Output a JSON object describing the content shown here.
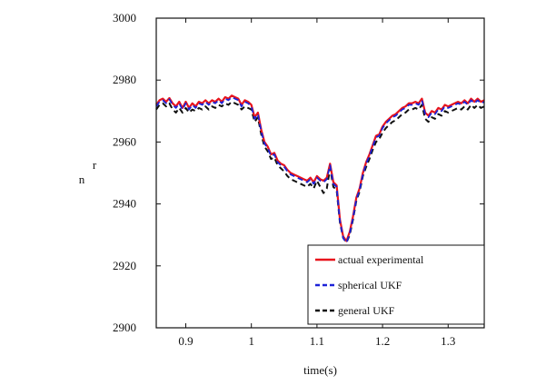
{
  "chart_data": {
    "type": "line",
    "xlabel": "time(s)",
    "ylabel": "n",
    "ylabel_sub": "r",
    "xlim": [
      0.855,
      1.355
    ],
    "ylim": [
      2900,
      3000
    ],
    "xticks": [
      0.9,
      1.0,
      1.1,
      1.2,
      1.3
    ],
    "xtick_labels": [
      "0.9",
      "1",
      "1.1",
      "1.2",
      "1.3"
    ],
    "yticks": [
      2900,
      2920,
      2940,
      2960,
      2980,
      3000
    ],
    "ytick_labels": [
      "2900",
      "2920",
      "2940",
      "2960",
      "2980",
      "3000"
    ],
    "grid": false,
    "legend_position": "bottom-right",
    "series": [
      {
        "name": "actual experimental",
        "color": "#e8141c",
        "style": "solid",
        "x": [
          0.855,
          0.86,
          0.865,
          0.87,
          0.875,
          0.88,
          0.885,
          0.89,
          0.895,
          0.9,
          0.905,
          0.91,
          0.915,
          0.92,
          0.925,
          0.93,
          0.935,
          0.94,
          0.945,
          0.95,
          0.955,
          0.96,
          0.965,
          0.97,
          0.975,
          0.98,
          0.985,
          0.99,
          0.995,
          1.0,
          1.005,
          1.01,
          1.015,
          1.02,
          1.025,
          1.03,
          1.035,
          1.04,
          1.045,
          1.05,
          1.055,
          1.06,
          1.065,
          1.07,
          1.075,
          1.08,
          1.085,
          1.09,
          1.095,
          1.1,
          1.105,
          1.11,
          1.115,
          1.12,
          1.125,
          1.13,
          1.135,
          1.14,
          1.145,
          1.15,
          1.155,
          1.16,
          1.165,
          1.17,
          1.175,
          1.18,
          1.185,
          1.19,
          1.195,
          1.2,
          1.205,
          1.21,
          1.215,
          1.22,
          1.225,
          1.23,
          1.235,
          1.24,
          1.245,
          1.25,
          1.255,
          1.26,
          1.265,
          1.27,
          1.275,
          1.28,
          1.285,
          1.29,
          1.295,
          1.3,
          1.305,
          1.31,
          1.315,
          1.32,
          1.325,
          1.33,
          1.335,
          1.34,
          1.345,
          1.35,
          1.355
        ],
        "y": [
          2972.0,
          2973.5,
          2974.0,
          2973.0,
          2974.2,
          2972.5,
          2971.5,
          2973.0,
          2971.0,
          2973.0,
          2971.0,
          2972.5,
          2971.5,
          2973.0,
          2972.5,
          2973.5,
          2972.5,
          2973.5,
          2973.0,
          2974.0,
          2973.0,
          2974.5,
          2974.0,
          2975.0,
          2974.5,
          2974.0,
          2972.0,
          2973.5,
          2973.0,
          2972.0,
          2968.0,
          2969.5,
          2964.0,
          2960.0,
          2958.5,
          2956.0,
          2956.5,
          2954.0,
          2953.0,
          2952.5,
          2951.0,
          2950.0,
          2949.5,
          2949.0,
          2948.5,
          2948.0,
          2947.5,
          2948.5,
          2947.0,
          2949.0,
          2948.0,
          2947.5,
          2948.5,
          2953.0,
          2947.0,
          2946.0,
          2935.0,
          2929.5,
          2928.0,
          2931.0,
          2936.0,
          2942.0,
          2945.0,
          2950.0,
          2953.5,
          2956.0,
          2959.0,
          2962.0,
          2962.5,
          2965.0,
          2966.5,
          2967.5,
          2968.5,
          2969.0,
          2970.0,
          2971.0,
          2971.5,
          2972.5,
          2972.5,
          2973.0,
          2972.5,
          2974.0,
          2969.5,
          2968.5,
          2970.0,
          2969.5,
          2971.0,
          2970.5,
          2972.0,
          2971.5,
          2972.0,
          2972.5,
          2973.0,
          2972.5,
          2973.5,
          2972.5,
          2974.0,
          2973.0,
          2974.0,
          2973.0,
          2973.5
        ]
      },
      {
        "name": "spherical UKF",
        "color": "#1c22d8",
        "style": "dashed",
        "x": [
          0.855,
          0.86,
          0.865,
          0.87,
          0.875,
          0.88,
          0.885,
          0.89,
          0.895,
          0.9,
          0.905,
          0.91,
          0.915,
          0.92,
          0.925,
          0.93,
          0.935,
          0.94,
          0.945,
          0.95,
          0.955,
          0.96,
          0.965,
          0.97,
          0.975,
          0.98,
          0.985,
          0.99,
          0.995,
          1.0,
          1.005,
          1.01,
          1.015,
          1.02,
          1.025,
          1.03,
          1.035,
          1.04,
          1.045,
          1.05,
          1.055,
          1.06,
          1.065,
          1.07,
          1.075,
          1.08,
          1.085,
          1.09,
          1.095,
          1.1,
          1.105,
          1.11,
          1.115,
          1.12,
          1.125,
          1.13,
          1.135,
          1.14,
          1.145,
          1.15,
          1.155,
          1.16,
          1.165,
          1.17,
          1.175,
          1.18,
          1.185,
          1.19,
          1.195,
          1.2,
          1.205,
          1.21,
          1.215,
          1.22,
          1.225,
          1.23,
          1.235,
          1.24,
          1.245,
          1.25,
          1.255,
          1.26,
          1.265,
          1.27,
          1.275,
          1.28,
          1.285,
          1.29,
          1.295,
          1.3,
          1.305,
          1.31,
          1.315,
          1.32,
          1.325,
          1.33,
          1.335,
          1.34,
          1.345,
          1.35,
          1.355
        ],
        "y": [
          2971.5,
          2973.0,
          2973.5,
          2972.5,
          2973.8,
          2972.0,
          2971.0,
          2972.5,
          2970.5,
          2972.5,
          2970.5,
          2972.0,
          2971.0,
          2972.5,
          2972.0,
          2973.0,
          2972.0,
          2973.0,
          2972.5,
          2973.5,
          2972.5,
          2974.0,
          2973.5,
          2974.5,
          2974.0,
          2973.5,
          2971.5,
          2973.0,
          2972.5,
          2971.5,
          2967.5,
          2969.0,
          2963.5,
          2959.5,
          2958.0,
          2955.5,
          2956.0,
          2953.5,
          2952.5,
          2952.0,
          2950.5,
          2949.5,
          2949.0,
          2948.5,
          2948.0,
          2947.5,
          2947.0,
          2948.0,
          2946.5,
          2948.5,
          2947.5,
          2947.0,
          2948.0,
          2952.5,
          2946.5,
          2945.5,
          2934.5,
          2929.0,
          2927.5,
          2930.5,
          2935.5,
          2941.5,
          2944.5,
          2949.5,
          2953.0,
          2955.5,
          2958.5,
          2961.5,
          2962.0,
          2964.5,
          2966.0,
          2967.0,
          2968.0,
          2968.5,
          2969.5,
          2970.5,
          2971.0,
          2972.0,
          2972.0,
          2972.5,
          2972.0,
          2973.5,
          2969.0,
          2968.0,
          2969.5,
          2969.0,
          2970.5,
          2970.0,
          2971.5,
          2971.0,
          2971.5,
          2972.0,
          2972.5,
          2972.0,
          2973.0,
          2972.0,
          2973.5,
          2972.5,
          2973.5,
          2972.5,
          2973.0
        ]
      },
      {
        "name": "general UKF",
        "color": "#111111",
        "style": "dashed",
        "x": [
          0.855,
          0.86,
          0.865,
          0.87,
          0.875,
          0.88,
          0.885,
          0.89,
          0.895,
          0.9,
          0.905,
          0.91,
          0.915,
          0.92,
          0.925,
          0.93,
          0.935,
          0.94,
          0.945,
          0.95,
          0.955,
          0.96,
          0.965,
          0.97,
          0.975,
          0.98,
          0.985,
          0.99,
          0.995,
          1.0,
          1.005,
          1.01,
          1.015,
          1.02,
          1.025,
          1.03,
          1.035,
          1.04,
          1.045,
          1.05,
          1.055,
          1.06,
          1.065,
          1.07,
          1.075,
          1.08,
          1.085,
          1.09,
          1.095,
          1.1,
          1.105,
          1.11,
          1.115,
          1.12,
          1.125,
          1.13,
          1.135,
          1.14,
          1.145,
          1.15,
          1.155,
          1.16,
          1.165,
          1.17,
          1.175,
          1.18,
          1.185,
          1.19,
          1.195,
          1.2,
          1.205,
          1.21,
          1.215,
          1.22,
          1.225,
          1.23,
          1.235,
          1.24,
          1.245,
          1.25,
          1.255,
          1.26,
          1.265,
          1.27,
          1.275,
          1.28,
          1.285,
          1.29,
          1.295,
          1.3,
          1.305,
          1.31,
          1.315,
          1.32,
          1.325,
          1.33,
          1.335,
          1.34,
          1.345,
          1.35,
          1.355
        ],
        "y": [
          2970.5,
          2972.0,
          2972.5,
          2971.5,
          2972.5,
          2970.5,
          2969.5,
          2971.0,
          2969.5,
          2971.0,
          2969.5,
          2970.5,
          2970.0,
          2971.0,
          2970.5,
          2971.5,
          2970.5,
          2971.5,
          2971.0,
          2972.0,
          2971.5,
          2972.5,
          2972.0,
          2973.0,
          2972.5,
          2972.0,
          2970.5,
          2971.5,
          2971.0,
          2970.5,
          2966.5,
          2968.0,
          2962.5,
          2958.5,
          2957.0,
          2954.5,
          2955.0,
          2952.5,
          2951.5,
          2950.5,
          2949.0,
          2948.0,
          2947.5,
          2947.0,
          2946.5,
          2946.0,
          2945.5,
          2946.5,
          2945.0,
          2947.5,
          2945.5,
          2943.5,
          2945.0,
          2951.5,
          2945.5,
          2944.5,
          2934.0,
          2929.0,
          2927.5,
          2930.0,
          2935.0,
          2941.0,
          2944.0,
          2949.0,
          2952.0,
          2954.5,
          2957.5,
          2960.0,
          2961.0,
          2963.0,
          2964.5,
          2965.5,
          2966.5,
          2967.0,
          2968.0,
          2969.0,
          2969.5,
          2970.5,
          2970.5,
          2971.0,
          2970.5,
          2972.0,
          2967.5,
          2966.5,
          2968.0,
          2967.5,
          2969.0,
          2968.5,
          2970.0,
          2969.5,
          2970.0,
          2970.5,
          2971.0,
          2970.5,
          2971.5,
          2970.5,
          2972.0,
          2971.0,
          2972.0,
          2971.0,
          2971.5
        ]
      }
    ]
  }
}
